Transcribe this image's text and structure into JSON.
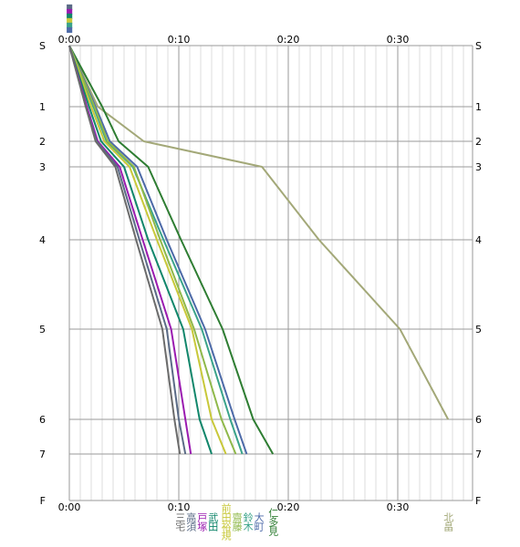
{
  "chart_data": {
    "type": "line",
    "title": "",
    "xlabel": "",
    "ylabel": "",
    "x_unit": "elapsed time (m:ss)",
    "x_ticks": [
      "0:00",
      "0:10",
      "0:20",
      "0:30"
    ],
    "xlim": [
      0,
      36
    ],
    "checkpoints": [
      {
        "label": "S",
        "index": 0
      },
      {
        "label": "1",
        "index": 1
      },
      {
        "label": "2",
        "index": 2
      },
      {
        "label": "3",
        "index": 3
      },
      {
        "label": "4",
        "index": 4
      },
      {
        "label": "5",
        "index": 5
      },
      {
        "label": "6",
        "index": 6
      },
      {
        "label": "7",
        "index": 7
      },
      {
        "label": "F",
        "index": 8
      }
    ],
    "top_legend": [
      "■",
      "■",
      "■",
      "■",
      "■",
      "■"
    ],
    "grid": true,
    "series": [
      {
        "name": "北畠",
        "color": "#a3a878",
        "x": [
          0,
          2.6,
          6.8,
          17.6,
          22.8,
          30.2,
          34.6
        ]
      },
      {
        "name": "仁多見",
        "color": "#2e7d32",
        "x": [
          0,
          3.0,
          4.5,
          7.2,
          10.2,
          14.0,
          16.8,
          18.6
        ]
      },
      {
        "name": "大町",
        "color": "#4d6aa8",
        "x": [
          0,
          2.4,
          3.7,
          6.2,
          8.9,
          12.4,
          15.1,
          16.2
        ]
      },
      {
        "name": "鈴木",
        "color": "#3aa38a",
        "x": [
          0,
          2.2,
          3.4,
          5.8,
          8.6,
          12.1,
          14.7,
          15.8
        ]
      },
      {
        "name": "齋藤",
        "color": "#8fb84a",
        "x": [
          0,
          2.3,
          3.5,
          5.9,
          8.3,
          11.4,
          13.9,
          15.2
        ]
      },
      {
        "name": "前田裕規",
        "color": "#c8c83a",
        "x": [
          0,
          2.0,
          3.2,
          5.5,
          8.0,
          11.2,
          13.0,
          14.3
        ]
      },
      {
        "name": "武田",
        "color": "#11866b",
        "x": [
          0,
          1.8,
          2.9,
          5.0,
          7.2,
          10.4,
          11.9,
          13.0
        ]
      },
      {
        "name": "戸塚",
        "color": "#9a1ab0",
        "x": [
          0,
          1.6,
          2.6,
          4.6,
          6.7,
          9.3,
          10.6,
          11.1
        ]
      },
      {
        "name": "高須",
        "color": "#5a6b86",
        "x": [
          0,
          1.5,
          2.5,
          4.4,
          6.4,
          8.9,
          10.0,
          10.6
        ]
      },
      {
        "name": "三宅",
        "color": "#6b6b6b",
        "x": [
          0,
          1.5,
          2.4,
          4.2,
          6.1,
          8.5,
          9.6,
          10.1
        ]
      }
    ]
  }
}
